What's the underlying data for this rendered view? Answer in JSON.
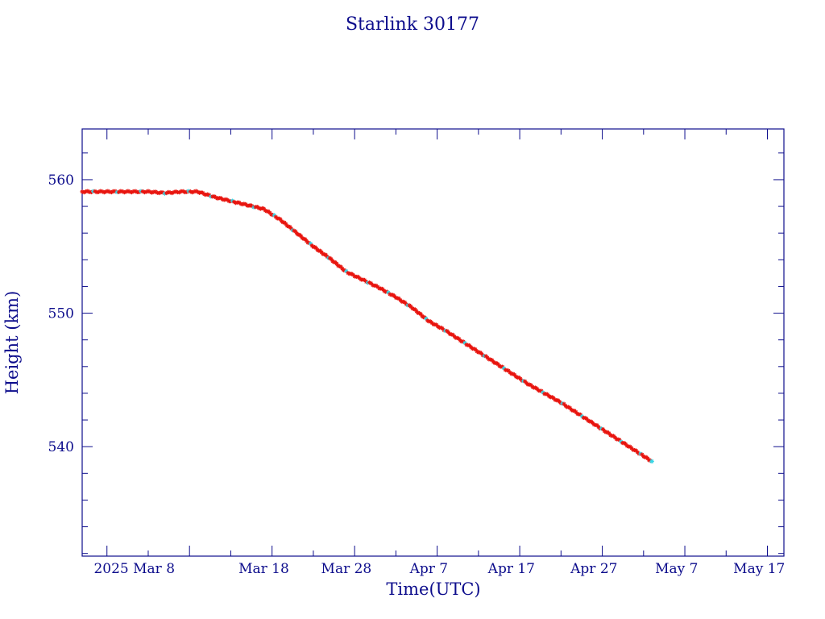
{
  "colors": {
    "axis": "#0d0d8c",
    "text": "#0d0d8c",
    "marker_primary": "#e8150f",
    "marker_secondary": "#39d6e6",
    "line": "#000000",
    "background": "#ffffff"
  },
  "chart_data": {
    "type": "scatter",
    "title": "Starlink 30177",
    "xlabel": "Time(UTC)",
    "ylabel": "Height (km)",
    "grid": false,
    "legend": "none",
    "xlim": [
      "2025-02-24",
      "2025-05-20"
    ],
    "ylim": [
      531.8,
      563.8
    ],
    "x_ticks": [
      {
        "date": "2025-02-27",
        "label": ""
      },
      {
        "date": "2025-03-08",
        "label": ""
      },
      {
        "date": "2025-03-18",
        "label": ""
      },
      {
        "date": "2025-03-28",
        "label": "Mar 28"
      },
      {
        "date": "2025-04-07",
        "label": "Apr  7"
      },
      {
        "date": "2025-04-17",
        "label": "Apr 17"
      },
      {
        "date": "2025-04-27",
        "label": "Apr 27"
      },
      {
        "date": "2025-05-07",
        "label": "May  7"
      },
      {
        "date": "2025-05-17",
        "label": "May 17"
      }
    ],
    "x_extra_labels": [
      {
        "date": "2025-02-27",
        "label": "2025 Mar  8"
      },
      {
        "date": "2025-03-18",
        "label": "Mar 18"
      }
    ],
    "y_ticks": [
      {
        "value": 540,
        "label": "540"
      },
      {
        "value": 550,
        "label": "550"
      },
      {
        "value": 560,
        "label": "560"
      }
    ],
    "series": [
      {
        "marker": "star",
        "color": "#e8150f",
        "points": [
          [
            "2025-02-24",
            559.1
          ],
          [
            "2025-02-26",
            559.1
          ],
          [
            "2025-02-28",
            559.1
          ],
          [
            "2025-03-02",
            559.1
          ],
          [
            "2025-03-04",
            559.1
          ],
          [
            "2025-03-06",
            559.0
          ],
          [
            "2025-03-08",
            559.1
          ],
          [
            "2025-03-10",
            559.1
          ],
          [
            "2025-03-12",
            558.7
          ],
          [
            "2025-03-14",
            558.4
          ],
          [
            "2025-03-16",
            558.1
          ],
          [
            "2025-03-18",
            557.8
          ],
          [
            "2025-03-20",
            557.0
          ],
          [
            "2025-03-22",
            556.0
          ],
          [
            "2025-03-24",
            555.0
          ],
          [
            "2025-03-26",
            554.1
          ],
          [
            "2025-03-28",
            553.1
          ],
          [
            "2025-03-30",
            552.5
          ],
          [
            "2025-04-01",
            551.9
          ],
          [
            "2025-04-03",
            551.2
          ],
          [
            "2025-04-05",
            550.4
          ],
          [
            "2025-04-07",
            549.4
          ],
          [
            "2025-04-09",
            548.7
          ],
          [
            "2025-04-11",
            547.9
          ],
          [
            "2025-04-13",
            547.1
          ],
          [
            "2025-04-15",
            546.3
          ],
          [
            "2025-04-17",
            545.5
          ],
          [
            "2025-04-19",
            544.7
          ],
          [
            "2025-04-21",
            544.0
          ],
          [
            "2025-04-23",
            543.3
          ],
          [
            "2025-04-25",
            542.5
          ],
          [
            "2025-04-27",
            541.7
          ],
          [
            "2025-04-29",
            540.9
          ],
          [
            "2025-05-01",
            540.1
          ],
          [
            "2025-05-03",
            539.3
          ],
          [
            "2025-05-04",
            538.9
          ]
        ]
      }
    ]
  }
}
